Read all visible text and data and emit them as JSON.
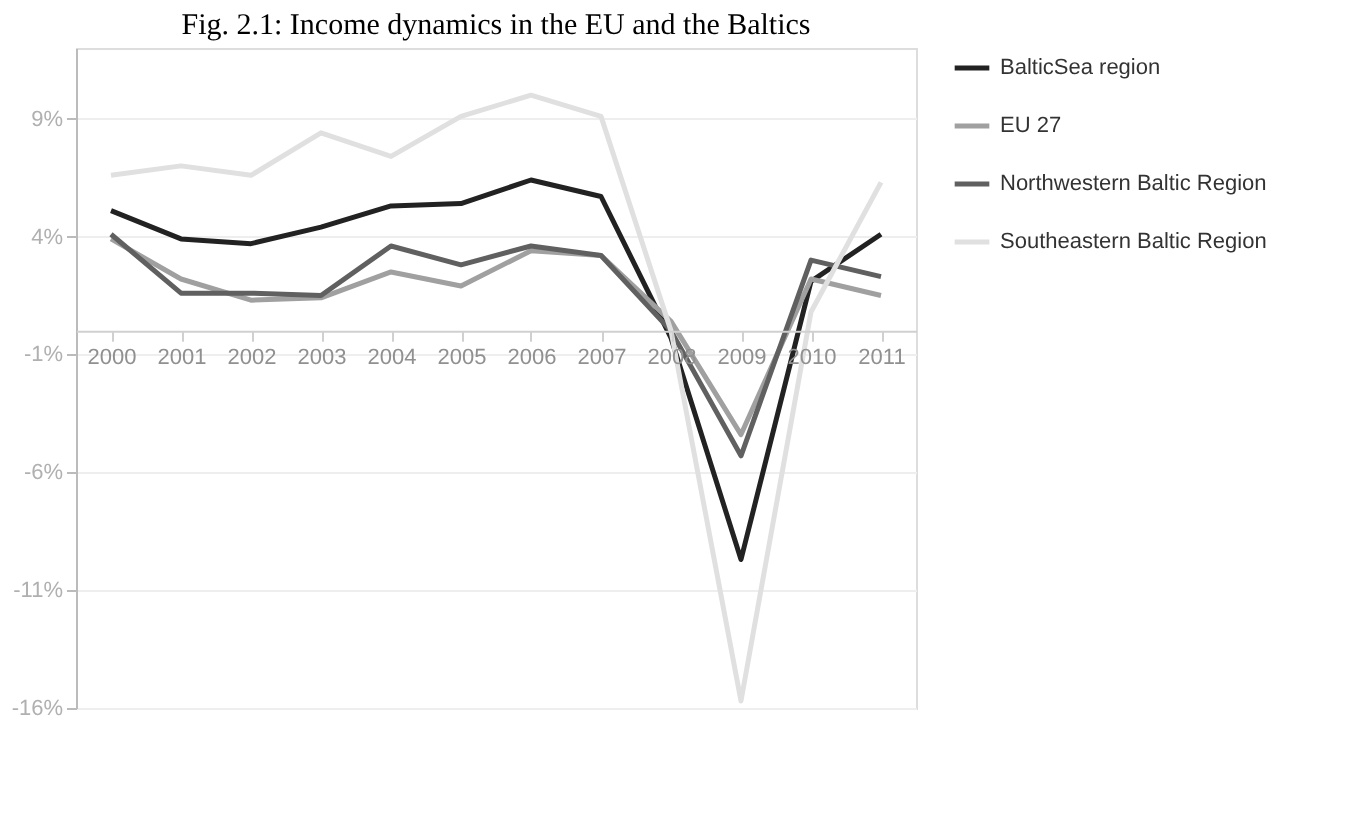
{
  "chart_data": {
    "type": "line",
    "title": "Fig. 2.1: Income dynamics in the EU and the Baltics",
    "categories": [
      "2000",
      "2001",
      "2002",
      "2003",
      "2004",
      "2005",
      "2006",
      "2007",
      "2008",
      "2009",
      "2010",
      "2011"
    ],
    "series": [
      {
        "name": "BalticSea region",
        "color": "#222222",
        "values": [
          5.1,
          3.9,
          3.7,
          4.4,
          5.3,
          5.4,
          6.4,
          5.7,
          -0.3,
          -9.7,
          2.1,
          4.1
        ]
      },
      {
        "name": "EU 27",
        "color": "#a0a0a0",
        "values": [
          3.9,
          2.2,
          1.3,
          1.4,
          2.5,
          1.9,
          3.4,
          3.2,
          0.4,
          -4.4,
          2.2,
          1.5
        ]
      },
      {
        "name": "Northwestern Baltic Region",
        "color": "#606060",
        "values": [
          4.1,
          1.6,
          1.6,
          1.5,
          3.6,
          2.8,
          3.6,
          3.2,
          0.0,
          -5.3,
          3.0,
          2.3
        ]
      },
      {
        "name": "Southeastern Baltic Region",
        "color": "#e0e0e0",
        "values": [
          6.6,
          7.0,
          6.6,
          8.4,
          7.4,
          9.1,
          10.0,
          9.1,
          0.0,
          -15.7,
          0.8,
          6.3
        ]
      }
    ],
    "ylim": [
      -16,
      12
    ],
    "yticks": [
      {
        "value": -16,
        "label": "-16%"
      },
      {
        "value": -11,
        "label": "-11%"
      },
      {
        "value": -6,
        "label": "-6%"
      },
      {
        "value": -1,
        "label": "-1%"
      },
      {
        "value": 4,
        "label": "4%"
      },
      {
        "value": 9,
        "label": "9%"
      }
    ],
    "grid": "y",
    "legend": "right",
    "marker": "none",
    "line_style": "solid"
  }
}
